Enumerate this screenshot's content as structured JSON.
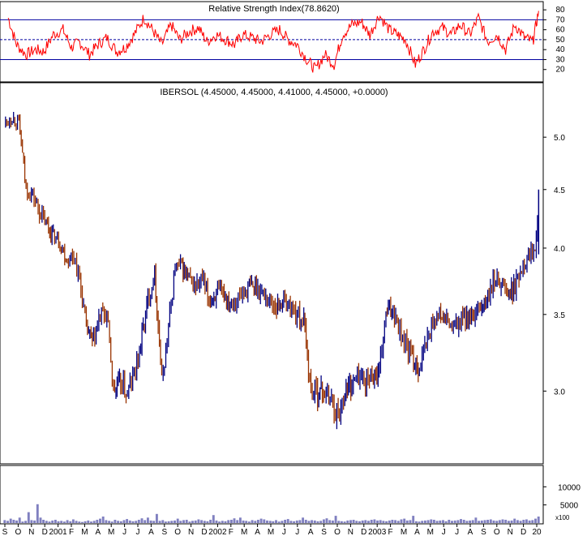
{
  "chart_data": [
    {
      "type": "line",
      "title": "Relative Strength Index(78.8620)",
      "series": [
        {
          "name": "",
          "color": "#ff0000",
          "x": [
            "2000-10-01",
            "2000-10-20",
            "2000-11-10",
            "2000-12-01",
            "2000-12-20",
            "2001-01-10",
            "2001-02-01",
            "2001-02-20",
            "2001-03-10",
            "2001-04-01",
            "2001-04-20",
            "2001-05-10",
            "2001-06-01",
            "2001-06-20",
            "2001-07-10",
            "2001-08-01",
            "2001-08-20",
            "2001-09-10",
            "2001-10-01",
            "2001-10-20",
            "2001-11-10",
            "2001-12-01",
            "2001-12-20",
            "2002-01-10",
            "2002-02-01",
            "2002-02-20",
            "2002-03-10",
            "2002-04-01",
            "2002-04-20",
            "2002-05-10",
            "2002-06-01",
            "2002-06-20",
            "2002-07-10",
            "2002-08-01",
            "2002-08-20",
            "2002-09-10",
            "2002-10-01",
            "2002-10-20",
            "2002-11-10",
            "2002-12-01",
            "2002-12-20",
            "2003-01-10",
            "2003-02-01",
            "2003-02-20",
            "2003-03-10",
            "2003-04-01",
            "2003-04-20",
            "2003-05-10",
            "2003-06-01",
            "2003-06-20",
            "2003-07-10",
            "2003-08-01",
            "2003-08-20",
            "2003-09-10",
            "2003-10-01",
            "2003-10-20",
            "2003-11-10",
            "2003-12-01",
            "2003-12-20",
            "2004-01-02"
          ],
          "values": [
            72,
            45,
            35,
            40,
            38,
            55,
            60,
            42,
            48,
            35,
            45,
            52,
            38,
            42,
            55,
            72,
            60,
            45,
            65,
            50,
            58,
            62,
            48,
            55,
            50,
            45,
            55,
            52,
            48,
            55,
            60,
            50,
            45,
            30,
            20,
            35,
            25,
            55,
            65,
            68,
            55,
            75,
            60,
            55,
            50,
            25,
            40,
            58,
            62,
            55,
            65,
            55,
            72,
            48,
            55,
            40,
            65,
            52,
            48,
            79
          ]
        }
      ],
      "ylim": [
        10,
        85
      ],
      "yticks": [
        20,
        30,
        40,
        50,
        60,
        70,
        80
      ],
      "reference_lines": [
        30,
        50,
        70
      ]
    },
    {
      "type": "ohlc",
      "title": "IBERSOL (4.45000, 4.45000, 4.41000, 4.45000, +0.0000)",
      "scale": "log",
      "ylim": [
        2.6,
        5.4
      ],
      "yticks": [
        "3.0",
        "3.5",
        "4.0",
        "4.5",
        "5.0"
      ],
      "up_color": "#000080",
      "down_color": "#993300",
      "series": [
        {
          "name": "",
          "x": [
            "2000-09-25",
            "2000-10-10",
            "2000-10-25",
            "2000-11-10",
            "2000-11-25",
            "2000-12-10",
            "2000-12-25",
            "2001-01-10",
            "2001-01-25",
            "2001-02-10",
            "2001-02-25",
            "2001-03-10",
            "2001-03-25",
            "2001-04-10",
            "2001-04-25",
            "2001-05-10",
            "2001-05-25",
            "2001-06-10",
            "2001-06-25",
            "2001-07-10",
            "2001-07-25",
            "2001-08-10",
            "2001-08-25",
            "2001-09-10",
            "2001-09-25",
            "2001-10-10",
            "2001-10-25",
            "2001-11-10",
            "2001-11-25",
            "2001-12-10",
            "2001-12-25",
            "2002-01-10",
            "2002-01-25",
            "2002-02-10",
            "2002-02-25",
            "2002-03-10",
            "2002-03-25",
            "2002-04-10",
            "2002-04-25",
            "2002-05-10",
            "2002-05-25",
            "2002-06-10",
            "2002-06-25",
            "2002-07-10",
            "2002-07-25",
            "2002-08-10",
            "2002-08-25",
            "2002-09-10",
            "2002-09-25",
            "2002-10-10",
            "2002-10-25",
            "2002-11-10",
            "2002-11-25",
            "2002-12-10",
            "2002-12-25",
            "2003-01-10",
            "2003-01-25",
            "2003-02-10",
            "2003-02-25",
            "2003-03-10",
            "2003-03-25",
            "2003-04-10",
            "2003-04-25",
            "2003-05-10",
            "2003-05-25",
            "2003-06-10",
            "2003-06-25",
            "2003-07-10",
            "2003-07-25",
            "2003-08-10",
            "2003-08-25",
            "2003-09-10",
            "2003-09-25",
            "2003-10-10",
            "2003-10-25",
            "2003-11-10",
            "2003-11-25",
            "2003-12-10",
            "2003-12-25",
            "2004-01-02"
          ],
          "close": [
            5.15,
            5.2,
            5.15,
            4.5,
            4.45,
            4.3,
            4.2,
            4.1,
            4.05,
            3.9,
            3.95,
            3.75,
            3.4,
            3.3,
            3.5,
            3.5,
            3.0,
            3.05,
            2.98,
            3.1,
            3.3,
            3.6,
            3.8,
            3.05,
            3.4,
            3.85,
            3.85,
            3.75,
            3.7,
            3.75,
            3.6,
            3.65,
            3.65,
            3.6,
            3.6,
            3.65,
            3.7,
            3.7,
            3.65,
            3.6,
            3.55,
            3.6,
            3.55,
            3.5,
            3.45,
            3.0,
            3.0,
            3.0,
            2.95,
            2.85,
            3.0,
            3.05,
            3.1,
            3.05,
            3.1,
            3.1,
            3.5,
            3.55,
            3.4,
            3.3,
            3.2,
            3.15,
            3.3,
            3.45,
            3.5,
            3.45,
            3.4,
            3.45,
            3.5,
            3.45,
            3.55,
            3.6,
            3.75,
            3.75,
            3.65,
            3.7,
            3.85,
            3.95,
            4.0,
            4.45
          ]
        }
      ]
    },
    {
      "type": "bar",
      "title": "",
      "color": "#8080c0",
      "yticks": [
        "5000",
        "10000"
      ],
      "ylim": [
        0,
        15000
      ],
      "series": [
        {
          "name": "",
          "values": [
            800,
            600,
            1200,
            900,
            700,
            1500,
            400,
            600,
            3000,
            800,
            700,
            5200,
            1500,
            900,
            600,
            400,
            700,
            900,
            500,
            600,
            400,
            800,
            500,
            1000,
            600,
            400,
            300,
            500,
            700,
            400,
            600,
            900,
            1200,
            1800,
            800,
            600,
            400,
            900,
            600,
            500,
            800,
            1100,
            700,
            500,
            600,
            900,
            1300,
            800,
            1500,
            700,
            600,
            2500,
            600,
            800,
            400,
            500,
            600,
            700,
            1200,
            600,
            800,
            900,
            400,
            600,
            700,
            1000,
            800,
            600,
            500,
            900,
            2200,
            700,
            400,
            600,
            500,
            800,
            900,
            1300,
            800,
            1500,
            700,
            600,
            400,
            800,
            600,
            900,
            1200,
            1000,
            700,
            600,
            500,
            800,
            400,
            600,
            900,
            1100,
            600,
            500,
            700,
            800,
            1500,
            900,
            600,
            800,
            700,
            500,
            600,
            1000,
            1300,
            800,
            700,
            2000,
            600,
            500,
            400,
            700,
            800,
            900,
            600,
            500,
            700,
            800,
            600,
            900,
            1000,
            700,
            800,
            600,
            500,
            700,
            900,
            800,
            600,
            1000,
            1200,
            700,
            800,
            2000,
            500,
            400,
            600,
            700,
            800,
            1000,
            900,
            600,
            700,
            800,
            500,
            900,
            600,
            700,
            800,
            1100,
            900,
            600,
            700,
            800,
            1500,
            600,
            700,
            800,
            900,
            1000,
            700,
            600,
            800,
            1000,
            900,
            600,
            700,
            1200,
            800,
            600,
            900,
            1000,
            700,
            800,
            1200,
            1800
          ]
        }
      ]
    }
  ],
  "x_axis": {
    "ticks": [
      "S",
      "O",
      "N",
      "D",
      "2001",
      "F",
      "M",
      "A",
      "M",
      "J",
      "J",
      "A",
      "S",
      "O",
      "N",
      "D",
      "2002",
      "F",
      "M",
      "A",
      "M",
      "J",
      "J",
      "A",
      "S",
      "O",
      "N",
      "D",
      "2003",
      "F",
      "M",
      "A",
      "M",
      "J",
      "J",
      "A",
      "S",
      "O",
      "N",
      "D",
      "20"
    ]
  },
  "volume_axis_marker": "x100"
}
